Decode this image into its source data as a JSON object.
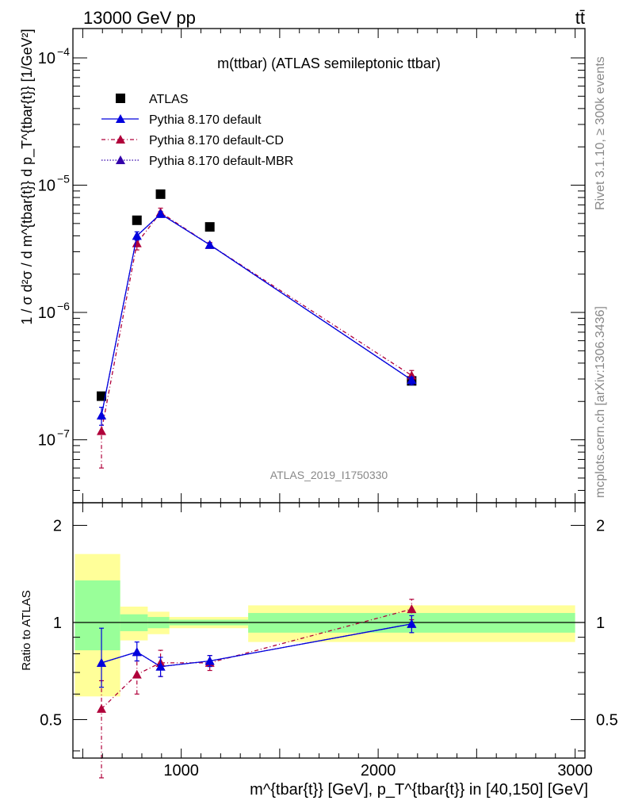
{
  "header": {
    "left": "13000 GeV pp",
    "right": "tt̄"
  },
  "side_labels": {
    "rivet": "Rivet 3.1.10, ≥ 300k events",
    "mcplots": "mcplots.cern.ch [arXiv:1306.3436]"
  },
  "colors": {
    "atlas": "#000000",
    "default": "#0000dd",
    "cd": "#b0003a",
    "mbr": "#3300aa",
    "band_inner": "#99ff99",
    "band_outer": "#ffff99"
  },
  "chart_data": [
    {
      "type": "scatter",
      "title": "m(ttbar) (ATLAS semileptonic ttbar)",
      "analysis_label": "ATLAS_2019_I1750330",
      "ylabel": "1 / σ d²σ / d m^{tbar{t}} d p_T^{tbar{t}} [1/GeV²]",
      "xlabel": "m^{tbar{t}} [GeV], p_T^{tbar{t}} in [40,150] [GeV]",
      "xlim": [
        450,
        3050
      ],
      "ylim": [
        3.2e-08,
        0.00017
      ],
      "yscale": "log",
      "y_ticks": [
        {
          "value": 1e-07,
          "mantissa": "10",
          "exp": "−7"
        },
        {
          "value": 1e-06,
          "mantissa": "10",
          "exp": "−6"
        },
        {
          "value": 1e-05,
          "mantissa": "10",
          "exp": "−5"
        },
        {
          "value": 0.0001,
          "mantissa": "10",
          "exp": "−4"
        }
      ],
      "legend": [
        "ATLAS",
        "Pythia 8.170 default",
        "Pythia 8.170 default-CD",
        "Pythia 8.170 default-MBR"
      ],
      "series": [
        {
          "name": "ATLAS",
          "x": [
            595,
            775,
            895,
            1145,
            2170
          ],
          "y": [
            2.2e-07,
            5.3e-06,
            8.5e-06,
            4.7e-06,
            2.9e-07
          ]
        },
        {
          "name": "Pythia 8.170 default",
          "x": [
            595,
            775,
            895,
            1145,
            2170
          ],
          "y": [
            1.55e-07,
            4e-06,
            5.95e-06,
            3.4e-06,
            2.95e-07
          ],
          "err_lo": [
            1.3e-07,
            3.7e-06,
            5.7e-06,
            3.3e-06,
            2.7e-07
          ],
          "err_hi": [
            1.8e-07,
            4.3e-06,
            6.2e-06,
            3.5e-06,
            3.1e-07
          ]
        },
        {
          "name": "Pythia 8.170 default-CD",
          "x": [
            595,
            775,
            895,
            1145,
            2170
          ],
          "y": [
            1.17e-07,
            3.5e-06,
            6.1e-06,
            3.4e-06,
            3.2e-07
          ],
          "err_lo": [
            6e-08,
            3.1e-06,
            5.6e-06,
            3.25e-06,
            2.9e-07
          ],
          "err_hi": [
            1.45e-07,
            3.9e-06,
            6.6e-06,
            3.55e-06,
            3.5e-07
          ]
        },
        {
          "name": "Pythia 8.170 default-MBR",
          "x": [
            595,
            775,
            895,
            1145,
            2170
          ],
          "y": [
            1.55e-07,
            4e-06,
            5.95e-06,
            3.4e-06,
            2.95e-07
          ]
        }
      ]
    },
    {
      "type": "scatter",
      "ylabel": "Ratio to ATLAS",
      "xlim": [
        450,
        3050
      ],
      "ylim": [
        0.38,
        2.35
      ],
      "yscale": "log",
      "x_ticks": [
        1000,
        2000,
        3000
      ],
      "y_ticks": [
        0.5,
        1,
        2
      ],
      "bins": [
        [
          460,
          690
        ],
        [
          690,
          830
        ],
        [
          830,
          940
        ],
        [
          940,
          1340
        ],
        [
          1340,
          3000
        ]
      ],
      "band_inner": [
        [
          0.82,
          1.35
        ],
        [
          0.94,
          1.06
        ],
        [
          0.96,
          1.04
        ],
        [
          0.98,
          1.02
        ],
        [
          0.93,
          1.07
        ]
      ],
      "band_outer": [
        [
          0.59,
          1.63
        ],
        [
          0.88,
          1.12
        ],
        [
          0.92,
          1.08
        ],
        [
          0.96,
          1.04
        ],
        [
          0.87,
          1.13
        ]
      ],
      "series": [
        {
          "name": "Pythia 8.170 default",
          "x": [
            595,
            775,
            895,
            1145,
            2170
          ],
          "y": [
            0.75,
            0.81,
            0.73,
            0.76,
            0.99
          ],
          "err_lo": [
            0.63,
            0.76,
            0.68,
            0.73,
            0.93
          ],
          "err_hi": [
            0.96,
            0.87,
            0.78,
            0.79,
            1.05
          ]
        },
        {
          "name": "Pythia 8.170 default-CD",
          "x": [
            595,
            775,
            895,
            1145,
            2170
          ],
          "y": [
            0.54,
            0.69,
            0.75,
            0.75,
            1.1
          ],
          "err_lo": [
            0.33,
            0.6,
            0.68,
            0.71,
            1.02
          ],
          "err_hi": [
            0.66,
            0.76,
            0.82,
            0.79,
            1.18
          ]
        },
        {
          "name": "Pythia 8.170 default-MBR",
          "x": [
            595,
            775,
            895,
            1145,
            2170
          ],
          "y": [
            0.75,
            0.81,
            0.73,
            0.76,
            0.99
          ]
        }
      ]
    }
  ]
}
